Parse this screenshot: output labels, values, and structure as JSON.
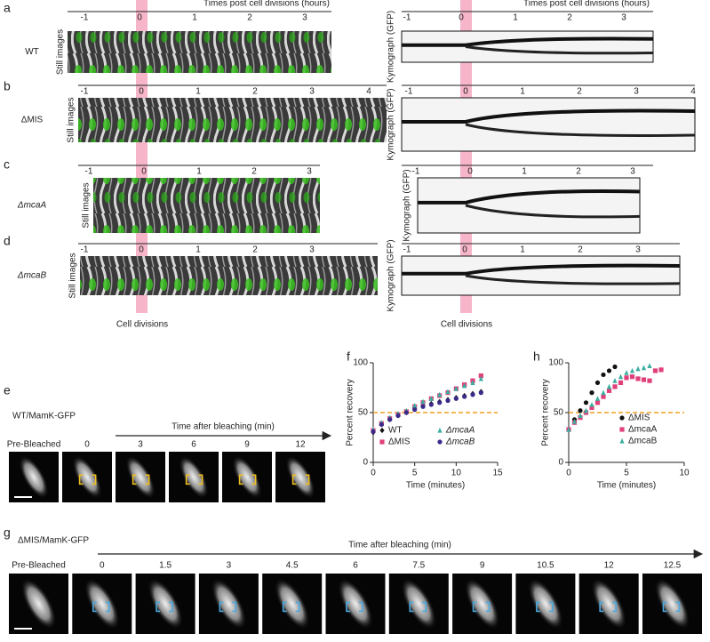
{
  "panel_labels": [
    "a",
    "b",
    "c",
    "d",
    "e",
    "f",
    "g",
    "h"
  ],
  "kymo_rows": [
    {
      "strain": "WT",
      "still_label": "Still images",
      "header": "Times post cell divisions  (hours)",
      "still_ticks": [
        "-1",
        "0",
        "1",
        "2",
        "3"
      ],
      "kymo_label": "Kymograph (GFP)",
      "kymo_header": "Times post cell divisions  (hours)",
      "kymo_ticks": [
        "-1",
        "0",
        "1",
        "2",
        "3"
      ]
    },
    {
      "strain": "ΔMIS",
      "still_label": "Still images",
      "still_ticks": [
        "-1",
        "0",
        "1",
        "2",
        "3",
        "4"
      ],
      "kymo_label": "Kymograph (GFP)",
      "kymo_ticks": [
        "-1",
        "0",
        "1",
        "2",
        "3",
        "4"
      ]
    },
    {
      "strain": "ΔmcaA",
      "still_label": "Still images",
      "still_ticks": [
        "-1",
        "0",
        "1",
        "2",
        "3"
      ],
      "kymo_label": "Kymograph (GFP)",
      "kymo_ticks": [
        "-1",
        "0",
        "1",
        "2",
        "3"
      ]
    },
    {
      "strain": "ΔmcaB",
      "still_label": "Still images",
      "still_ticks": [
        "-1",
        "0",
        "1",
        "2",
        "3"
      ],
      "kymo_label": "Kymograph (GFP)",
      "kymo_ticks": [
        "-1",
        "0",
        "1",
        "2",
        "3"
      ]
    }
  ],
  "cell_divisions": [
    "Cell divisions",
    "Cell divisions"
  ],
  "frap_e": {
    "title": "WT/MamK-GFP",
    "arrow_label": "Time after bleaching (min)",
    "frames": [
      "Pre-Bleached",
      "0",
      "3",
      "6",
      "9",
      "12"
    ]
  },
  "frap_g": {
    "title": "ΔMIS/MamK-GFP",
    "arrow_label": "Time after bleaching (min)",
    "frames": [
      "Pre-Bleached",
      "0",
      "1.5",
      "3",
      "4.5",
      "6",
      "7.5",
      "9",
      "10.5",
      "12",
      "12.5"
    ]
  },
  "chart_data": [
    {
      "type": "scatter",
      "xlabel": "Time (minutes)",
      "ylabel": "Percent recovery",
      "xlim": [
        0,
        15
      ],
      "xticks": [
        0,
        5,
        10,
        15
      ],
      "ylim": [
        0,
        100
      ],
      "yticks": [
        0,
        50,
        100
      ],
      "reference_line": {
        "y": 50,
        "color": "#f0a020"
      },
      "series": [
        {
          "name": "WT",
          "color": "#111111",
          "marker": "diamond",
          "x": [
            0,
            1,
            2,
            3,
            4,
            5,
            6,
            7,
            8,
            9,
            10,
            11,
            12,
            13
          ],
          "values": [
            30,
            38,
            43,
            47,
            50,
            54,
            57,
            59,
            61,
            63,
            65,
            67,
            69,
            71
          ]
        },
        {
          "name": "ΔMIS",
          "color": "#e0407a",
          "marker": "square",
          "x": [
            0,
            1,
            2,
            3,
            4,
            5,
            6,
            7,
            8,
            9,
            10,
            11,
            12,
            13
          ],
          "values": [
            32,
            39,
            44,
            48,
            51,
            56,
            60,
            64,
            67,
            70,
            74,
            78,
            82,
            87
          ]
        },
        {
          "name": "ΔmcaA",
          "color": "#3aaea0",
          "marker": "triangle",
          "x": [
            0,
            1,
            2,
            3,
            4,
            5,
            6,
            7,
            8,
            9,
            10,
            11,
            12,
            13
          ],
          "values": [
            33,
            40,
            45,
            49,
            52,
            57,
            61,
            64,
            68,
            71,
            74,
            77,
            80,
            84
          ]
        },
        {
          "name": "ΔmcaB",
          "color": "#3b2a8a",
          "marker": "circle",
          "x": [
            0,
            1,
            2,
            3,
            4,
            5,
            6,
            7,
            8,
            9,
            10,
            11,
            12,
            13
          ],
          "values": [
            31,
            38,
            43,
            47,
            50,
            53,
            56,
            58,
            60,
            62,
            64,
            66,
            68,
            70
          ]
        }
      ]
    },
    {
      "type": "scatter",
      "xlabel": "Time (minutes)",
      "ylabel": "Percent recovery",
      "xlim": [
        0,
        10
      ],
      "xticks": [
        0,
        5,
        10
      ],
      "ylim": [
        0,
        100
      ],
      "yticks": [
        0,
        50,
        100
      ],
      "reference_line": {
        "y": 50,
        "color": "#f0a020"
      },
      "series": [
        {
          "name": "ΔMIS",
          "color": "#111111",
          "marker": "circle",
          "x": [
            0,
            0.5,
            1,
            1.5,
            2,
            2.5,
            3,
            3.5,
            4
          ],
          "values": [
            33,
            43,
            52,
            60,
            70,
            80,
            88,
            92,
            96
          ]
        },
        {
          "name": "ΔmcaA",
          "color": "#e0407a",
          "marker": "square",
          "x": [
            0,
            0.5,
            1,
            1.5,
            2,
            2.5,
            3,
            3.5,
            4,
            4.5,
            5,
            5.5,
            6,
            6.5,
            7,
            7.5,
            8
          ],
          "values": [
            33,
            40,
            45,
            50,
            55,
            60,
            66,
            72,
            76,
            80,
            85,
            86,
            84,
            83,
            82,
            92,
            93
          ]
        },
        {
          "name": "ΔmcaB",
          "color": "#3aaea0",
          "marker": "triangle",
          "x": [
            0,
            0.5,
            1,
            1.5,
            2,
            2.5,
            3,
            3.5,
            4,
            4.5,
            5,
            5.5,
            6,
            6.5,
            7
          ],
          "values": [
            33,
            41,
            47,
            52,
            58,
            64,
            70,
            76,
            82,
            86,
            90,
            92,
            94,
            95,
            97
          ]
        }
      ]
    }
  ]
}
